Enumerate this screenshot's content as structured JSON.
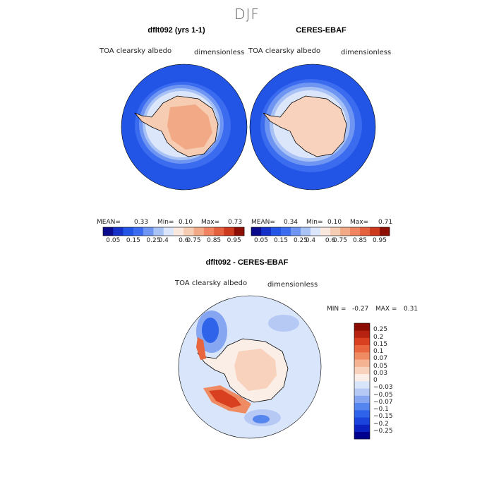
{
  "figure_title": "DJF",
  "panels": [
    {
      "title": "dflt092 (yrs 1-1)",
      "variable": "TOA clearsky albedo",
      "units": "dimensionless",
      "stats": {
        "mean_label": "MEAN=",
        "mean": "0.33",
        "min_label": "Min=",
        "min": "0.10",
        "max_label": "Max=",
        "max": "0.73"
      }
    },
    {
      "title": "CERES-EBAF",
      "variable": "TOA clearsky albedo",
      "units": "dimensionless",
      "stats": {
        "mean_label": "MEAN=",
        "mean": "0.34",
        "min_label": "Min=",
        "min": "0.10",
        "max_label": "Max=",
        "max": "0.71"
      }
    },
    {
      "title": "dflt092 - CERES-EBAF",
      "variable": "TOA clearsky albedo",
      "units": "dimensionless",
      "stats": {
        "min_label": "MIN =",
        "min": "-0.27",
        "max_label": "MAX =",
        "max": "0.31"
      }
    }
  ],
  "colorbar_abs": {
    "colors": [
      "#0a0a8c",
      "#1530c8",
      "#2255e6",
      "#3b6cf0",
      "#6e95f2",
      "#a8c2f5",
      "#dbe6fa",
      "#fbe8dc",
      "#f6cdb2",
      "#f2aa86",
      "#ee8560",
      "#e5603c",
      "#cc3a1e",
      "#8e1005"
    ],
    "ticks": [
      "0.05",
      "0.15",
      "0.25",
      "0.4",
      "0.6",
      "0.75",
      "0.85",
      "0.95"
    ]
  },
  "colorbar_diff": {
    "colors": [
      "#00008c",
      "#0b22c0",
      "#1a44dc",
      "#2f63ea",
      "#5585ef",
      "#86a6f2",
      "#b6c9f5",
      "#d9e5fa",
      "#fbeee6",
      "#f8d2bd",
      "#f4b393",
      "#ef8b63",
      "#e9653d",
      "#d8401f",
      "#b52310",
      "#8a0c02"
    ],
    "ticks": [
      "−0.25",
      "−0.2",
      "−0.15",
      "−0.1",
      "−0.07",
      "−0.05",
      "−0.03",
      "0",
      "0.03",
      "0.05",
      "0.07",
      "0.1",
      "0.15",
      "0.2",
      "0.25"
    ]
  },
  "chart_data": {
    "type": "heatmap",
    "projection": "south polar stereographic",
    "season": "DJF",
    "maps": [
      {
        "name": "dflt092 (yrs 1-1)",
        "mean": 0.33,
        "min": 0.1,
        "max": 0.73
      },
      {
        "name": "CERES-EBAF",
        "mean": 0.34,
        "min": 0.1,
        "max": 0.71
      },
      {
        "name": "dflt092 - CERES-EBAF",
        "min": -0.27,
        "max": 0.31
      }
    ],
    "colorbar_levels_abs": [
      0.05,
      0.15,
      0.25,
      0.4,
      0.6,
      0.75,
      0.85,
      0.95
    ],
    "colorbar_levels_diff": [
      -0.25,
      -0.2,
      -0.15,
      -0.1,
      -0.07,
      -0.05,
      -0.03,
      0,
      0.03,
      0.05,
      0.07,
      0.1,
      0.15,
      0.2,
      0.25
    ]
  }
}
